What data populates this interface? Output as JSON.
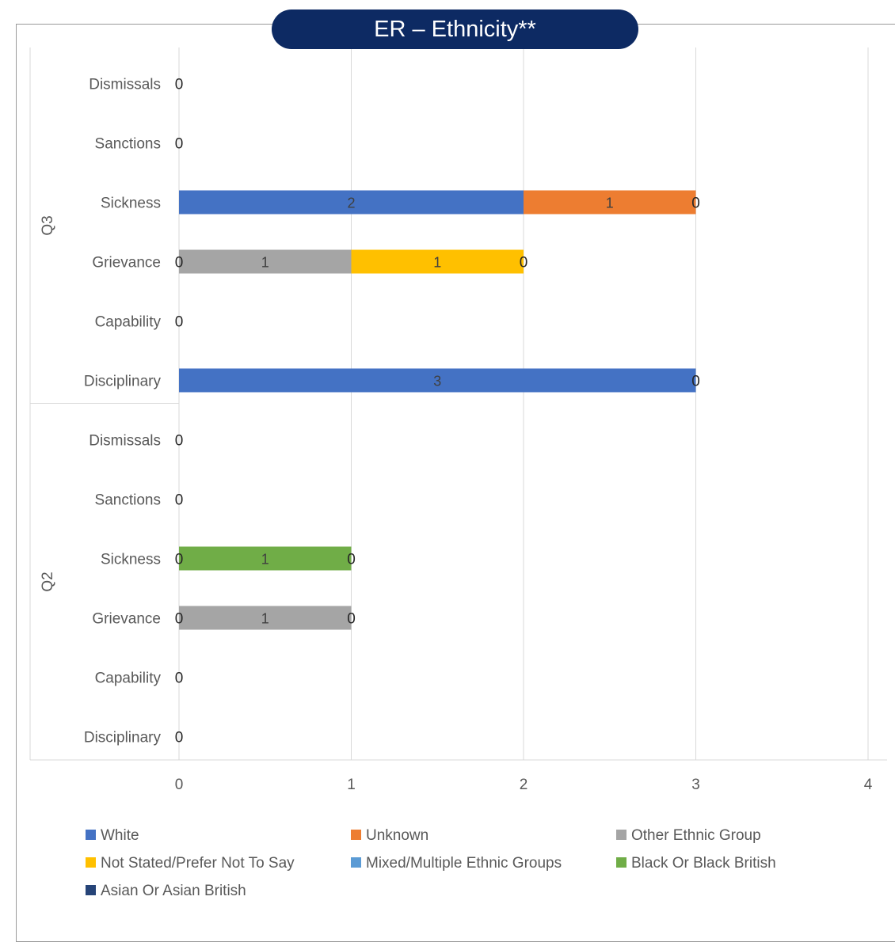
{
  "chart_data": {
    "type": "bar",
    "orientation": "horizontal",
    "stacked": true,
    "title": "ER – Ethnicity**",
    "xlim": [
      0,
      4
    ],
    "x_ticks": [
      0,
      1,
      2,
      3,
      4
    ],
    "grid": true,
    "legend_position": "bottom",
    "groups": [
      {
        "name": "Q3",
        "categories": [
          "Dismissals",
          "Sanctions",
          "Sickness",
          "Grievance",
          "Capability",
          "Disciplinary"
        ]
      },
      {
        "name": "Q2",
        "categories": [
          "Dismissals",
          "Sanctions",
          "Sickness",
          "Grievance",
          "Capability",
          "Disciplinary"
        ]
      }
    ],
    "series": [
      {
        "name": "White",
        "color": "#4472c4",
        "values": [
          0,
          0,
          2,
          0,
          0,
          3,
          0,
          0,
          0,
          0,
          0,
          0
        ],
        "labels": [
          "",
          "",
          "2",
          "",
          "",
          "3",
          "",
          "",
          "",
          "",
          "",
          ""
        ]
      },
      {
        "name": "Unknown",
        "color": "#ed7d31",
        "values": [
          0,
          0,
          1,
          0,
          0,
          0,
          0,
          0,
          0,
          0,
          0,
          0
        ],
        "labels": [
          "",
          "",
          "1",
          "",
          "",
          "",
          "",
          "",
          "",
          "",
          "",
          ""
        ]
      },
      {
        "name": "Other Ethnic Group",
        "color": "#a5a5a5",
        "values": [
          0,
          0,
          0,
          1,
          0,
          0,
          0,
          0,
          0,
          1,
          0,
          0
        ],
        "labels": [
          "",
          "",
          "",
          "1",
          "",
          "",
          "",
          "",
          "",
          "1",
          "",
          ""
        ]
      },
      {
        "name": "Not Stated/Prefer Not To Say",
        "color": "#ffc000",
        "values": [
          0,
          0,
          0,
          1,
          0,
          0,
          0,
          0,
          0,
          0,
          0,
          0
        ],
        "labels": [
          "",
          "",
          "",
          "1",
          "",
          "",
          "",
          "",
          "",
          "",
          "",
          ""
        ]
      },
      {
        "name": "Mixed/Multiple Ethnic Groups",
        "color": "#5b9bd5",
        "values": [
          0,
          0,
          0,
          0,
          0,
          0,
          0,
          0,
          0,
          0,
          0,
          0
        ],
        "labels": [
          "",
          "",
          "",
          "",
          "",
          "",
          "",
          "",
          "",
          "",
          "",
          ""
        ]
      },
      {
        "name": "Black Or Black British",
        "color": "#70ad47",
        "values": [
          0,
          0,
          0,
          0,
          0,
          0,
          0,
          0,
          1,
          0,
          0,
          0
        ],
        "labels": [
          "",
          "",
          "",
          "",
          "",
          "",
          "",
          "",
          "1",
          "",
          "",
          ""
        ]
      },
      {
        "name": "Asian Or Asian British",
        "color": "#264478",
        "values": [
          0,
          0,
          0,
          0,
          0,
          0,
          0,
          0,
          0,
          0,
          0,
          0
        ],
        "labels": [
          "",
          "",
          "",
          "",
          "",
          "",
          "",
          "",
          "",
          "",
          "",
          ""
        ]
      }
    ],
    "zero_labels": [
      [
        "0"
      ],
      [
        "0"
      ],
      [
        "0"
      ],
      [
        "0",
        "0"
      ],
      [
        "0"
      ],
      [
        "0"
      ],
      [
        "0"
      ],
      [
        "0"
      ],
      [
        "0",
        "0"
      ],
      [
        "0",
        "0"
      ],
      [
        "0"
      ],
      [
        "0"
      ]
    ]
  }
}
